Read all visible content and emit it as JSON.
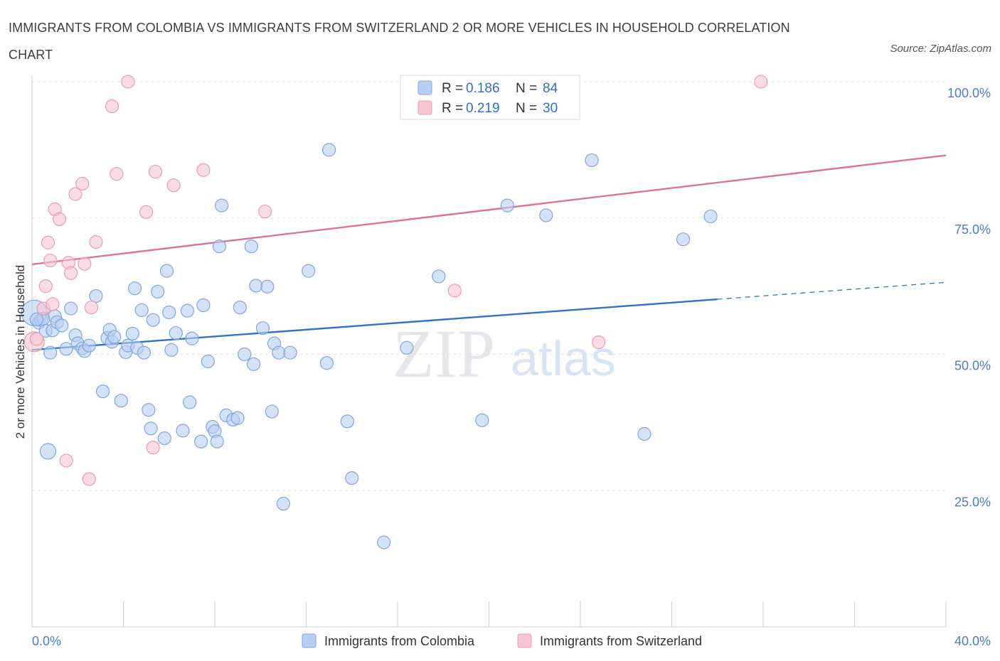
{
  "header": {
    "title": "IMMIGRANTS FROM COLOMBIA VS IMMIGRANTS FROM SWITZERLAND 2 OR MORE VEHICLES IN HOUSEHOLD CORRELATION CHART",
    "source": "Source: ZipAtlas.com"
  },
  "watermark": {
    "zip": "ZIP",
    "atlas": "atlas"
  },
  "legend": {
    "colombia": {
      "r_label": "R = ",
      "r_value": "0.186",
      "n_label": "N = ",
      "n_value": "84"
    },
    "switzerland": {
      "r_label": "R = ",
      "r_value": "0.219",
      "n_label": "N = ",
      "n_value": "30"
    }
  },
  "colors": {
    "colombia_fill": "#b7cff3",
    "colombia_stroke": "#7ea6e0",
    "colombia_line": "#2f72c9",
    "switzerland_fill": "#f7c5d3",
    "switzerland_stroke": "#eb9ab2",
    "switzerland_line": "#e0709a",
    "grid": "#dfe3ea",
    "tick_label": "#4a7cc7"
  },
  "chart_data": {
    "type": "scatter",
    "title": "IMMIGRANTS FROM COLOMBIA VS IMMIGRANTS FROM SWITZERLAND 2 OR MORE VEHICLES IN HOUSEHOLD CORRELATION CHART",
    "ylabel": "2 or more Vehicles in Household",
    "xlabel": "",
    "xlim": [
      0,
      40
    ],
    "ylim": [
      0,
      100
    ],
    "x_tick_labels": [
      "0.0%",
      "40.0%"
    ],
    "y_ticks": [
      25,
      50,
      75,
      100
    ],
    "y_tick_labels": [
      "25.0%",
      "50.0%",
      "75.0%",
      "100.0%"
    ],
    "grid": true,
    "legend_position": "top-center",
    "series": [
      {
        "name": "Immigrants from Colombia",
        "r": 0.186,
        "n": 84,
        "trend": {
          "x0": 0,
          "y0": 50.8,
          "x1": 30,
          "y1": 60.1,
          "dash_to_x": 40,
          "dash_to_y": 63.2
        },
        "points": [
          [
            0.1,
            57.6
          ],
          [
            0.3,
            55.8
          ],
          [
            0.4,
            56.3
          ],
          [
            0.5,
            56.5
          ],
          [
            0.6,
            54.3
          ],
          [
            0.7,
            32.2
          ],
          [
            0.8,
            50.3
          ],
          [
            0.9,
            54.4
          ],
          [
            1.0,
            57.0
          ],
          [
            1.1,
            55.9
          ],
          [
            1.3,
            55.3
          ],
          [
            1.5,
            51.0
          ],
          [
            1.7,
            58.4
          ],
          [
            1.9,
            53.5
          ],
          [
            2.0,
            52.0
          ],
          [
            2.2,
            51.1
          ],
          [
            2.3,
            50.6
          ],
          [
            2.5,
            51.6
          ],
          [
            2.8,
            60.7
          ],
          [
            3.1,
            43.2
          ],
          [
            3.3,
            53.0
          ],
          [
            3.4,
            54.5
          ],
          [
            3.5,
            52.3
          ],
          [
            3.6,
            53.2
          ],
          [
            3.9,
            41.5
          ],
          [
            4.1,
            50.4
          ],
          [
            4.2,
            51.6
          ],
          [
            4.4,
            53.8
          ],
          [
            4.5,
            62.1
          ],
          [
            4.6,
            51.2
          ],
          [
            4.8,
            58.1
          ],
          [
            4.9,
            50.3
          ],
          [
            5.1,
            39.8
          ],
          [
            5.2,
            36.4
          ],
          [
            5.3,
            56.3
          ],
          [
            5.5,
            61.5
          ],
          [
            5.8,
            34.6
          ],
          [
            5.9,
            65.3
          ],
          [
            6.0,
            57.7
          ],
          [
            6.1,
            50.8
          ],
          [
            6.3,
            53.9
          ],
          [
            6.6,
            36.0
          ],
          [
            6.8,
            58.0
          ],
          [
            6.9,
            41.2
          ],
          [
            7.0,
            52.9
          ],
          [
            7.4,
            34.0
          ],
          [
            7.5,
            59.0
          ],
          [
            7.7,
            48.7
          ],
          [
            7.9,
            36.7
          ],
          [
            8.0,
            35.9
          ],
          [
            8.1,
            34.0
          ],
          [
            8.2,
            69.8
          ],
          [
            8.3,
            77.3
          ],
          [
            8.5,
            38.8
          ],
          [
            8.8,
            38.0
          ],
          [
            9.0,
            38.3
          ],
          [
            9.1,
            58.6
          ],
          [
            9.3,
            50.0
          ],
          [
            9.6,
            69.8
          ],
          [
            9.7,
            48.2
          ],
          [
            9.8,
            62.6
          ],
          [
            10.1,
            54.8
          ],
          [
            10.3,
            62.4
          ],
          [
            10.5,
            39.5
          ],
          [
            10.6,
            52.0
          ],
          [
            10.8,
            50.3
          ],
          [
            11.0,
            22.6
          ],
          [
            11.3,
            50.3
          ],
          [
            12.1,
            65.3
          ],
          [
            12.9,
            48.4
          ],
          [
            13.0,
            87.5
          ],
          [
            13.8,
            37.7
          ],
          [
            14.0,
            27.3
          ],
          [
            15.4,
            15.5
          ],
          [
            16.4,
            51.2
          ],
          [
            17.8,
            64.3
          ],
          [
            19.7,
            37.9
          ],
          [
            20.8,
            77.3
          ],
          [
            22.5,
            75.5
          ],
          [
            24.5,
            85.6
          ],
          [
            26.8,
            35.4
          ],
          [
            28.5,
            71.1
          ],
          [
            29.7,
            75.3
          ],
          [
            0.2,
            56.4
          ]
        ]
      },
      {
        "name": "Immigrants from Switzerland",
        "r": 0.219,
        "n": 30,
        "trend": {
          "x0": 0,
          "y0": 66.5,
          "x1": 40,
          "y1": 86.5
        },
        "points": [
          [
            0.1,
            52.3
          ],
          [
            0.2,
            52.8
          ],
          [
            0.5,
            58.4
          ],
          [
            0.6,
            62.5
          ],
          [
            0.7,
            70.5
          ],
          [
            0.8,
            67.2
          ],
          [
            0.9,
            59.2
          ],
          [
            1.0,
            76.6
          ],
          [
            1.2,
            74.8
          ],
          [
            1.5,
            30.5
          ],
          [
            1.6,
            66.8
          ],
          [
            1.7,
            64.9
          ],
          [
            1.9,
            79.4
          ],
          [
            2.2,
            81.3
          ],
          [
            2.3,
            66.6
          ],
          [
            2.5,
            27.1
          ],
          [
            2.6,
            58.6
          ],
          [
            2.8,
            70.6
          ],
          [
            3.5,
            95.5
          ],
          [
            3.7,
            83.1
          ],
          [
            4.2,
            100.0
          ],
          [
            5.0,
            76.1
          ],
          [
            5.3,
            32.9
          ],
          [
            5.4,
            83.5
          ],
          [
            6.2,
            81.0
          ],
          [
            7.5,
            83.8
          ],
          [
            10.2,
            76.2
          ],
          [
            18.5,
            61.7
          ],
          [
            24.8,
            52.2
          ],
          [
            31.9,
            100.0
          ]
        ]
      }
    ]
  }
}
